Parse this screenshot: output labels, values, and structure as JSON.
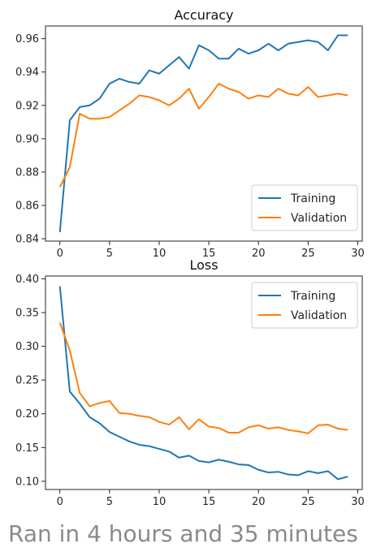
{
  "caption": "Ran in 4 hours and 35 minutes",
  "colors": {
    "training": "#1f77b4",
    "validation": "#ff7f0e"
  },
  "chart_data": [
    {
      "type": "line",
      "title": "Accuracy",
      "xlabel": "",
      "ylabel": "",
      "xlim": [
        -1.45,
        30.45
      ],
      "ylim": [
        0.8386,
        0.9676
      ],
      "xticks": [
        0,
        5,
        10,
        15,
        20,
        25,
        30
      ],
      "yticks": [
        0.84,
        0.86,
        0.88,
        0.9,
        0.92,
        0.94,
        0.96
      ],
      "ytick_labels": [
        "0.84",
        "0.86",
        "0.88",
        "0.90",
        "0.92",
        "0.94",
        "0.96"
      ],
      "grid": false,
      "legend_position": "lower-right",
      "series": [
        {
          "name": "Training",
          "color": "#1f77b4",
          "x": [
            0,
            1,
            2,
            3,
            4,
            5,
            6,
            7,
            8,
            9,
            10,
            11,
            12,
            13,
            14,
            15,
            16,
            17,
            18,
            19,
            20,
            21,
            22,
            23,
            24,
            25,
            26,
            27,
            28,
            29
          ],
          "values": [
            0.844,
            0.911,
            0.919,
            0.92,
            0.924,
            0.933,
            0.936,
            0.934,
            0.933,
            0.941,
            0.939,
            0.944,
            0.949,
            0.942,
            0.956,
            0.953,
            0.948,
            0.948,
            0.954,
            0.951,
            0.953,
            0.957,
            0.953,
            0.957,
            0.958,
            0.959,
            0.958,
            0.953,
            0.962,
            0.962
          ]
        },
        {
          "name": "Validation",
          "color": "#ff7f0e",
          "x": [
            0,
            1,
            2,
            3,
            4,
            5,
            6,
            7,
            8,
            9,
            10,
            11,
            12,
            13,
            14,
            15,
            16,
            17,
            18,
            19,
            20,
            21,
            22,
            23,
            24,
            25,
            26,
            27,
            28,
            29
          ],
          "values": [
            0.871,
            0.883,
            0.915,
            0.912,
            0.912,
            0.913,
            0.917,
            0.921,
            0.926,
            0.925,
            0.923,
            0.92,
            0.924,
            0.93,
            0.918,
            0.925,
            0.933,
            0.93,
            0.928,
            0.924,
            0.926,
            0.925,
            0.93,
            0.927,
            0.926,
            0.931,
            0.925,
            0.926,
            0.927,
            0.926
          ]
        }
      ]
    },
    {
      "type": "line",
      "title": "Loss",
      "xlabel": "",
      "ylabel": "",
      "xlim": [
        -1.45,
        30.45
      ],
      "ylim": [
        0.0878,
        0.4042
      ],
      "xticks": [
        0,
        5,
        10,
        15,
        20,
        25,
        30
      ],
      "yticks": [
        0.1,
        0.15,
        0.2,
        0.25,
        0.3,
        0.35,
        0.4
      ],
      "ytick_labels": [
        "0.10",
        "0.15",
        "0.20",
        "0.25",
        "0.30",
        "0.35",
        "0.40"
      ],
      "grid": false,
      "legend_position": "upper-right",
      "series": [
        {
          "name": "Training",
          "color": "#1f77b4",
          "x": [
            0,
            1,
            2,
            3,
            4,
            5,
            6,
            7,
            8,
            9,
            10,
            11,
            12,
            13,
            14,
            15,
            16,
            17,
            18,
            19,
            20,
            21,
            22,
            23,
            24,
            25,
            26,
            27,
            28,
            29
          ],
          "values": [
            0.389,
            0.233,
            0.215,
            0.195,
            0.186,
            0.173,
            0.166,
            0.159,
            0.154,
            0.152,
            0.148,
            0.144,
            0.135,
            0.138,
            0.13,
            0.128,
            0.132,
            0.129,
            0.125,
            0.124,
            0.117,
            0.113,
            0.114,
            0.11,
            0.109,
            0.115,
            0.112,
            0.115,
            0.103,
            0.107
          ]
        },
        {
          "name": "Validation",
          "color": "#ff7f0e",
          "x": [
            0,
            1,
            2,
            3,
            4,
            5,
            6,
            7,
            8,
            9,
            10,
            11,
            12,
            13,
            14,
            15,
            16,
            17,
            18,
            19,
            20,
            21,
            22,
            23,
            24,
            25,
            26,
            27,
            28,
            29
          ],
          "values": [
            0.335,
            0.294,
            0.231,
            0.211,
            0.216,
            0.219,
            0.201,
            0.2,
            0.197,
            0.195,
            0.188,
            0.184,
            0.195,
            0.177,
            0.192,
            0.181,
            0.179,
            0.172,
            0.172,
            0.18,
            0.183,
            0.178,
            0.18,
            0.176,
            0.174,
            0.171,
            0.183,
            0.184,
            0.178,
            0.176
          ]
        }
      ]
    }
  ]
}
